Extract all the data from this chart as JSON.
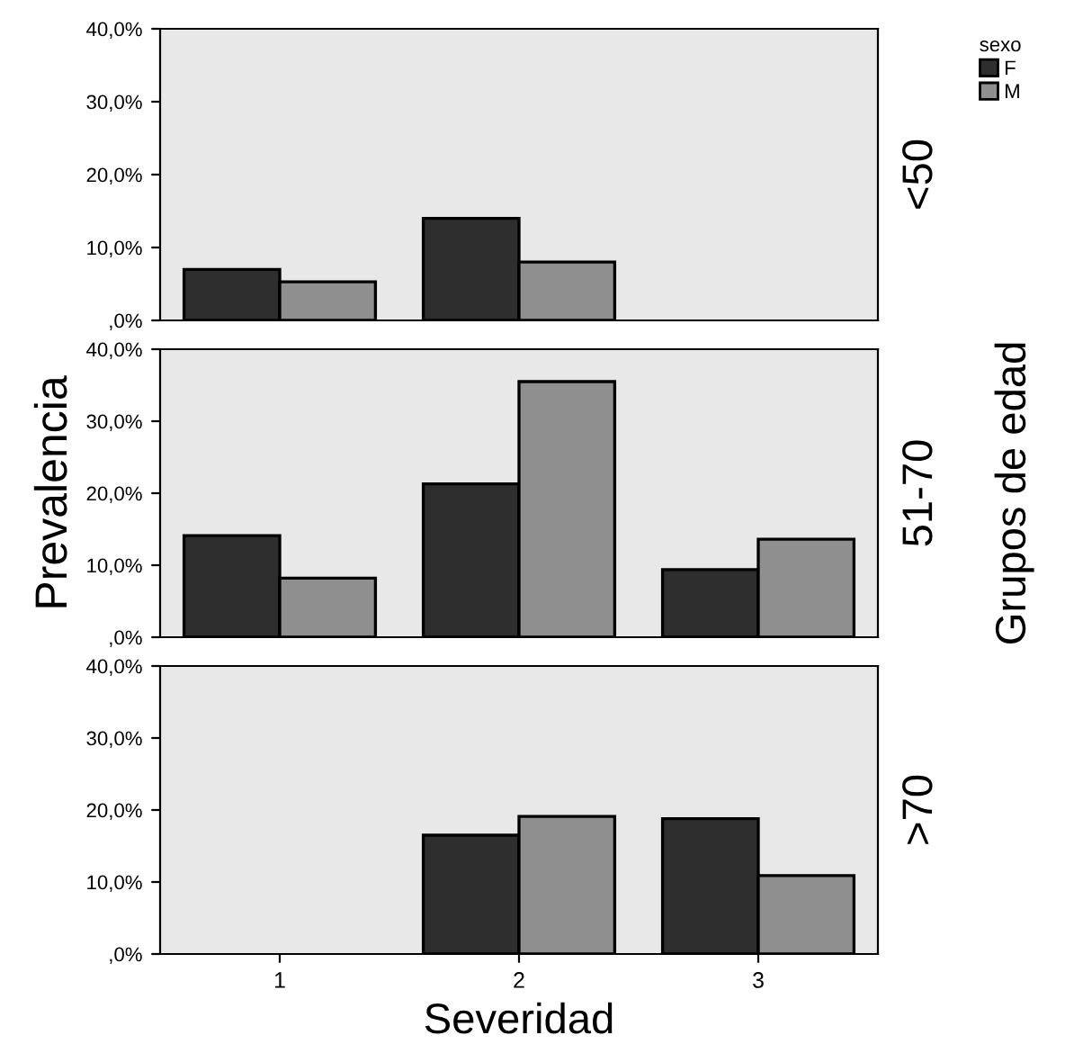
{
  "chart_data": [
    {
      "type": "bar",
      "annotations": [
        "<50"
      ],
      "categories": [
        "1",
        "2",
        "3"
      ],
      "legend_title": "sexo",
      "legend": "right",
      "series": [
        {
          "name": "F",
          "color": "#2e2e2e",
          "values": [
            7.0,
            14.0,
            null
          ]
        },
        {
          "name": "M",
          "color": "#8f8f8f",
          "values": [
            5.3,
            8.0,
            null
          ]
        }
      ],
      "ylim": [
        0,
        40
      ],
      "yticks": [
        {
          "value": 0,
          "label": ",0%"
        },
        {
          "value": 10,
          "label": "10,0%"
        },
        {
          "value": 20,
          "label": "20,0%"
        },
        {
          "value": 30,
          "label": "30,0%"
        },
        {
          "value": 40,
          "label": "40,0%"
        }
      ],
      "tick_labels": "y"
    },
    {
      "type": "bar",
      "annotations": [
        "51-70",
        "Grupos de edad"
      ],
      "categories": [
        "1",
        "2",
        "3"
      ],
      "ylabel": "Prevalencia",
      "series": [
        {
          "color": "#2e2e2e",
          "values": [
            14.1,
            21.3,
            9.4
          ]
        },
        {
          "color": "#8f8f8f",
          "values": [
            8.2,
            35.5,
            13.6
          ]
        }
      ],
      "ylim": [
        0,
        40
      ],
      "yticks": [
        {
          "value": 0,
          "label": ",0%"
        },
        {
          "value": 10,
          "label": "10,0%"
        },
        {
          "value": 20,
          "label": "20,0%"
        },
        {
          "value": 30,
          "label": "30,0%"
        },
        {
          "value": 40,
          "label": "40,0%"
        }
      ],
      "tick_labels": "y"
    },
    {
      "type": "bar",
      "annotations": [
        ">70"
      ],
      "categories": [
        "1",
        "2",
        "3"
      ],
      "xlabel": "Severidad",
      "series": [
        {
          "color": "#2e2e2e",
          "values": [
            null,
            16.5,
            18.8
          ]
        },
        {
          "color": "#8f8f8f",
          "values": [
            null,
            19.1,
            10.9
          ]
        }
      ],
      "ylim": [
        0,
        40
      ],
      "yticks": [
        {
          "value": 0,
          "label": ",0%"
        },
        {
          "value": 10,
          "label": "10,0%"
        },
        {
          "value": 20,
          "label": "20,0%"
        },
        {
          "value": 30,
          "label": "30,0%"
        },
        {
          "value": 40,
          "label": "40,0%"
        }
      ]
    }
  ]
}
